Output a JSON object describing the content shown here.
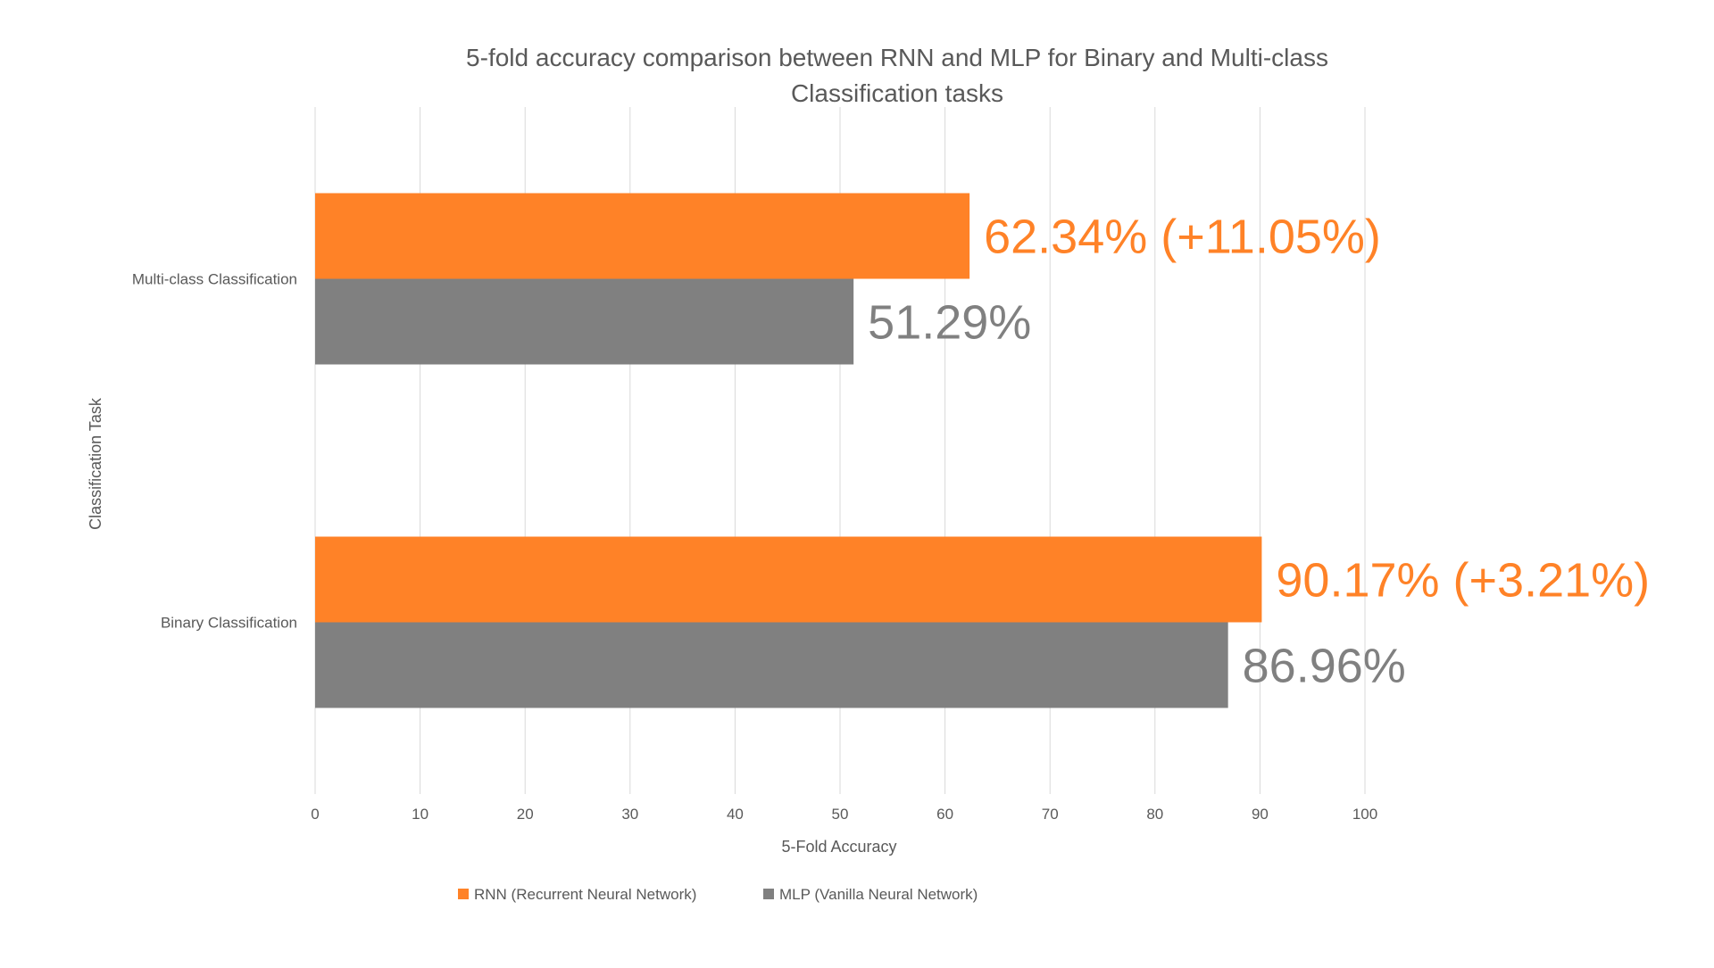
{
  "chart_data": {
    "type": "bar",
    "orientation": "horizontal",
    "title_lines": [
      "5-fold accuracy comparison between RNN and MLP for Binary and Multi-class",
      "Classification tasks"
    ],
    "xlabel": "5-Fold Accuracy",
    "ylabel": "Classification Task",
    "xlim": [
      0,
      100
    ],
    "xticks": [
      0,
      10,
      20,
      30,
      40,
      50,
      60,
      70,
      80,
      90,
      100
    ],
    "grid": "vertical",
    "legend_position": "bottom",
    "categories": [
      "Multi-class Classification",
      "Binary Classification"
    ],
    "series": [
      {
        "name": "RNN (Recurrent Neural Network)",
        "color": "#FF8227",
        "values": [
          62.34,
          90.17
        ],
        "data_labels": [
          "62.34% (+11.05%)",
          "90.17% (+3.21%)"
        ]
      },
      {
        "name": "MLP (Vanilla Neural Network)",
        "color": "#808080",
        "values": [
          51.29,
          86.96
        ],
        "data_labels": [
          "51.29%",
          "86.96%"
        ]
      }
    ]
  }
}
